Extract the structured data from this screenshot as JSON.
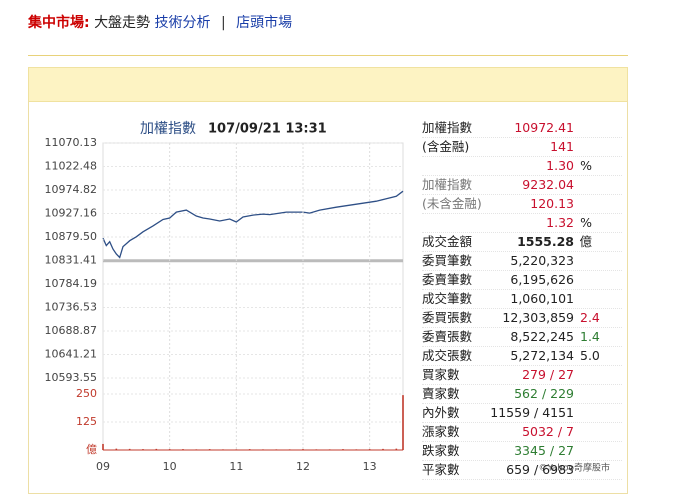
{
  "nav": {
    "label": "集中市場:",
    "items": [
      "大盤走勢",
      "技術分析",
      "店頭市場"
    ],
    "separator": "|"
  },
  "chart_data": [
    {
      "type": "line",
      "title": "加權指數",
      "subtitle": "107/09/21 13:31",
      "color": "#2e4f86",
      "reference": 10831.41,
      "reference_color": "#bbbbbb",
      "x": [
        9.0,
        9.05,
        9.1,
        9.15,
        9.2,
        9.25,
        9.3,
        9.4,
        9.5,
        9.6,
        9.75,
        9.9,
        10.0,
        10.1,
        10.25,
        10.4,
        10.5,
        10.6,
        10.75,
        10.9,
        11.0,
        11.1,
        11.25,
        11.4,
        11.5,
        11.75,
        12.0,
        12.1,
        12.25,
        12.5,
        12.75,
        13.0,
        13.1,
        13.25,
        13.4,
        13.5
      ],
      "series": [
        {
          "name": "加權指數",
          "color": "#2e4f86",
          "values": [
            10877,
            10862,
            10870,
            10855,
            10845,
            10838,
            10860,
            10872,
            10880,
            10890,
            10902,
            10915,
            10918,
            10930,
            10934,
            10922,
            10918,
            10916,
            10912,
            10916,
            10910,
            10920,
            10924,
            10926,
            10925,
            10930,
            10930,
            10928,
            10934,
            10940,
            10945,
            10950,
            10952,
            10957,
            10962,
            10972.41
          ]
        }
      ],
      "xlim": [
        9,
        13.5
      ],
      "ylim": [
        10593.55,
        11070.13
      ],
      "yticks": [
        {
          "value": 11070.13,
          "label": "11070.13"
        },
        {
          "value": 11022.48,
          "label": "11022.48"
        },
        {
          "value": 10974.82,
          "label": "10974.82"
        },
        {
          "value": 10927.16,
          "label": "10927.16"
        },
        {
          "value": 10879.5,
          "label": "10879.50"
        },
        {
          "value": 10831.41,
          "label": "10831.41"
        },
        {
          "value": 10784.19,
          "label": "10784.19"
        },
        {
          "value": 10736.53,
          "label": "10736.53"
        },
        {
          "value": 10688.87,
          "label": "10688.87"
        },
        {
          "value": 10641.21,
          "label": "10641.21"
        },
        {
          "value": 10593.55,
          "label": "10593.55"
        }
      ],
      "grid": true
    },
    {
      "type": "bar",
      "color": "#c0392b",
      "x": [
        9.0,
        9.2,
        9.4,
        9.6,
        9.8,
        10.0,
        10.2,
        10.4,
        10.6,
        10.8,
        11.0,
        11.2,
        11.4,
        11.6,
        11.8,
        12.0,
        12.2,
        12.4,
        12.6,
        12.8,
        13.0,
        13.2,
        13.4,
        13.5
      ],
      "values": [
        27,
        6,
        5,
        4,
        5,
        4,
        4,
        3,
        4,
        3,
        3,
        4,
        3,
        3,
        3,
        4,
        3,
        3,
        4,
        3,
        4,
        5,
        6,
        245
      ],
      "xlim": [
        9,
        13.5
      ],
      "ylim": [
        0,
        250
      ],
      "yticks": [
        250,
        125,
        {
          "value": 0,
          "label": "億"
        }
      ],
      "xticks": [
        {
          "value": 9,
          "label": "09"
        },
        10,
        11,
        12,
        13
      ],
      "grid": true
    }
  ],
  "copyright": "©Yahoo奇摩股市",
  "quotes": [
    {
      "label": "加權指數",
      "value": "10972.41"
    },
    {
      "label": "(含金融)",
      "value": "141"
    },
    {
      "value": "1.30",
      "unit": "%"
    },
    {
      "label": "加權指數",
      "value": "9232.04"
    },
    {
      "label": "(未含金融)",
      "value": "120.13"
    },
    {
      "value": "1.32",
      "unit": "%"
    },
    {
      "label": "成交金額",
      "value": "1555.28",
      "unit": "億"
    },
    {
      "label": "委買筆數",
      "value": "5,220,323"
    },
    {
      "label": "委賣筆數",
      "value": "6,195,626"
    },
    {
      "label": "成交筆數",
      "value": "1,060,101"
    },
    {
      "label": "委買張數",
      "value": "12,303,859",
      "extra": "2.4"
    },
    {
      "label": "委賣張數",
      "value": "8,522,245",
      "extra": "1.4"
    },
    {
      "label": "成交張數",
      "value": "5,272,134",
      "extra": "5.0"
    },
    {
      "label": "買家數",
      "value": "279 / 27"
    },
    {
      "label": "賣家數",
      "value": "562 / 229"
    },
    {
      "label": "內外數",
      "value": "11559 / 4151"
    },
    {
      "label": "漲家數",
      "value": "5032 / 7"
    },
    {
      "label": "跌家數",
      "value": "3345 / 27"
    },
    {
      "label": "平家數",
      "value": "659 / 6983"
    }
  ]
}
